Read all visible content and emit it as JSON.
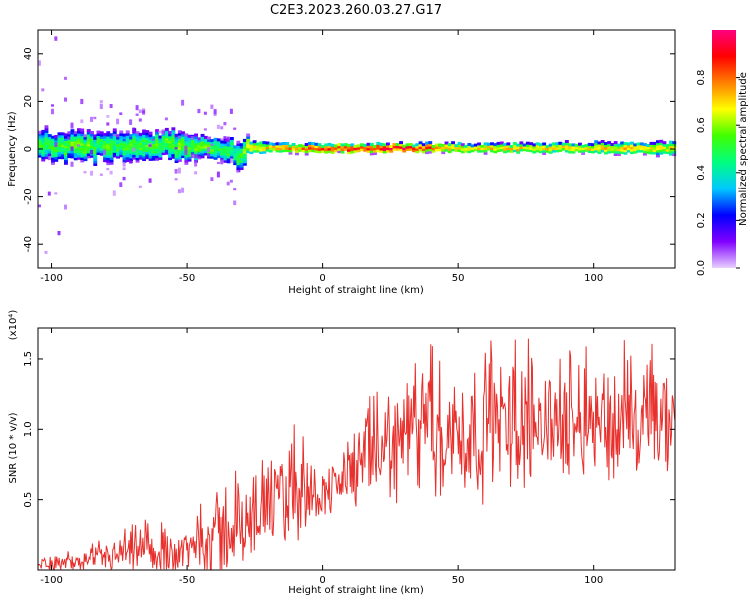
{
  "title": "C2E3.2023.260.03.27.G17",
  "chart_data": [
    {
      "type": "heatmap",
      "xlabel": "Height of straight line (km)",
      "ylabel": "Frequency (Hz)",
      "xlim": [
        -105,
        130
      ],
      "ylim": [
        -50,
        50
      ],
      "xticks": [
        -100,
        -50,
        0,
        50,
        100
      ],
      "yticks": [
        -40,
        -20,
        0,
        20,
        40
      ],
      "colorbar": {
        "label": "Normalized spectral amplitude",
        "range": [
          0.0,
          1.0
        ],
        "ticks": [
          0.0,
          0.2,
          0.4,
          0.6,
          0.8
        ],
        "colors": [
          "#e8d0ff",
          "#8000ff",
          "#0000ff",
          "#00c8ff",
          "#00ff80",
          "#40ff00",
          "#ffff00",
          "#ff8000",
          "#ff0000",
          "#ff0080"
        ]
      },
      "band": {
        "x": [
          -105,
          -90,
          -75,
          -60,
          -45,
          -35,
          -30,
          -28,
          -20,
          0,
          20,
          30,
          50,
          80,
          110,
          130
        ],
        "center_hz": [
          1.5,
          1.0,
          1.5,
          2.0,
          1.5,
          0.5,
          -3.0,
          1.0,
          0.5,
          0.5,
          0.5,
          0.5,
          0.5,
          0.5,
          0.5,
          0.5
        ],
        "half_width_hz": [
          6,
          6,
          6,
          6,
          5,
          5,
          6,
          3,
          2,
          2,
          2,
          2,
          2,
          2,
          2.5,
          3
        ],
        "peak_amplitude": [
          0.5,
          0.55,
          0.5,
          0.55,
          0.55,
          0.5,
          0.5,
          0.7,
          0.7,
          0.85,
          0.9,
          0.95,
          0.7,
          0.7,
          0.7,
          0.65
        ]
      }
    },
    {
      "type": "line",
      "xlabel": "Height of straight line (km)",
      "ylabel": "SNR (10 * v/v)",
      "y_scale_label": "(x10⁴)",
      "xlim": [
        -105,
        130
      ],
      "ylim": [
        0,
        1.72
      ],
      "xticks": [
        -100,
        -50,
        0,
        50,
        100
      ],
      "yticks": [
        0.5,
        1.0,
        1.5
      ],
      "yticklabels": [
        "0.5",
        "1.0",
        "1.5"
      ],
      "series": [
        {
          "color": "#e8302c",
          "envelope": {
            "x": [
              -105,
              -90,
              -80,
              -75,
              -70,
              -60,
              -50,
              -45,
              -40,
              -35,
              -30,
              -25,
              -20,
              -15,
              -10,
              -8,
              -5,
              0,
              5,
              10,
              20,
              30,
              40,
              50,
              60,
              70,
              80,
              90,
              100,
              110,
              120,
              130
            ],
            "base": [
              0.05,
              0.05,
              0.08,
              0.1,
              0.12,
              0.12,
              0.14,
              0.2,
              0.25,
              0.28,
              0.3,
              0.35,
              0.45,
              0.5,
              0.6,
              0.65,
              0.55,
              0.55,
              0.6,
              0.7,
              0.85,
              0.95,
              1.0,
              0.95,
              1.0,
              1.05,
              1.05,
              1.05,
              1.1,
              1.0,
              1.05,
              1.0
            ],
            "spread": [
              0.05,
              0.06,
              0.1,
              0.15,
              0.18,
              0.15,
              0.15,
              0.2,
              0.3,
              0.35,
              0.3,
              0.2,
              0.3,
              0.35,
              0.4,
              0.45,
              0.2,
              0.15,
              0.2,
              0.25,
              0.35,
              0.4,
              0.45,
              0.45,
              0.45,
              0.45,
              0.4,
              0.35,
              0.4,
              0.4,
              0.45,
              0.4
            ]
          }
        }
      ]
    }
  ]
}
